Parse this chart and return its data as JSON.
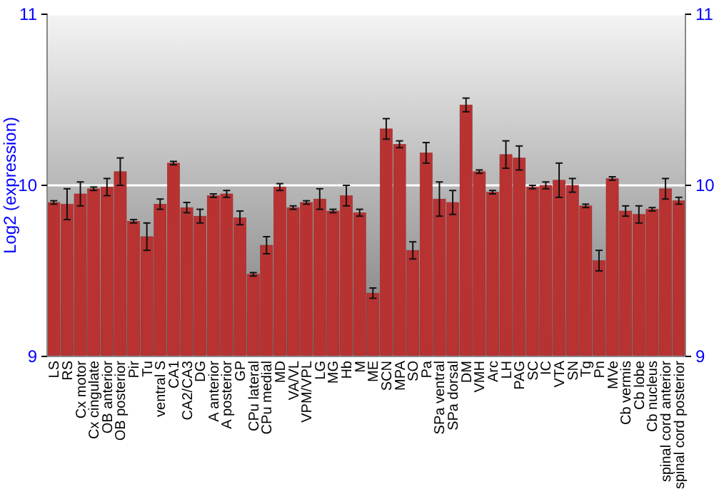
{
  "chart_data": {
    "type": "bar",
    "ylabel": "Log2 (expression)",
    "categories": [
      "LS",
      "RS",
      "Cx motor",
      "Cx cingulate",
      "OB anterior",
      "OB posterior",
      "Pir",
      "Tu",
      "ventral S",
      "CA1",
      "CA2/CA3",
      "DG",
      "A anterior",
      "A posterior",
      "GP",
      "CPu lateral",
      "CPu medial",
      "MD",
      "VA/VL",
      "VPM/VPL",
      "LG",
      "MG",
      "Hb",
      "M",
      "ME",
      "SCN",
      "MPA",
      "SO",
      "Pa",
      "SPa ventral",
      "SPa dorsal",
      "DM",
      "VMH",
      "Arc",
      "LH",
      "PAG",
      "SC",
      "IC",
      "VTA",
      "SN",
      "Tg",
      "Pn",
      "MVe",
      "Cb vermis",
      "Cb lobe",
      "Cb nucleus",
      "spinal cord anterior",
      "spinal cord posterior"
    ],
    "values": [
      9.9,
      9.89,
      9.95,
      9.98,
      9.99,
      10.08,
      9.79,
      9.7,
      9.89,
      10.13,
      9.87,
      9.82,
      9.94,
      9.95,
      9.81,
      9.48,
      9.65,
      9.99,
      9.87,
      9.9,
      9.92,
      9.85,
      9.94,
      9.84,
      9.37,
      10.33,
      10.24,
      9.62,
      10.19,
      9.92,
      9.9,
      10.47,
      10.08,
      9.96,
      10.18,
      10.16,
      9.99,
      10.0,
      10.03,
      10.0,
      9.88,
      9.56,
      10.04,
      9.85,
      9.83,
      9.86,
      9.98,
      9.91
    ],
    "errors": [
      0.01,
      0.09,
      0.07,
      0.01,
      0.05,
      0.08,
      0.01,
      0.08,
      0.03,
      0.01,
      0.03,
      0.04,
      0.01,
      0.02,
      0.04,
      0.01,
      0.05,
      0.02,
      0.01,
      0.01,
      0.06,
      0.01,
      0.06,
      0.02,
      0.03,
      0.06,
      0.02,
      0.05,
      0.06,
      0.1,
      0.07,
      0.04,
      0.01,
      0.01,
      0.08,
      0.07,
      0.01,
      0.02,
      0.1,
      0.04,
      0.01,
      0.06,
      0.01,
      0.03,
      0.05,
      0.01,
      0.06,
      0.02
    ],
    "color": "#b83232",
    "ylim": [
      9,
      11
    ],
    "yticks": [
      9,
      10,
      11
    ],
    "y2lim": [
      9,
      11
    ],
    "y2ticks": [
      9,
      10,
      11
    ],
    "grid": "y"
  }
}
